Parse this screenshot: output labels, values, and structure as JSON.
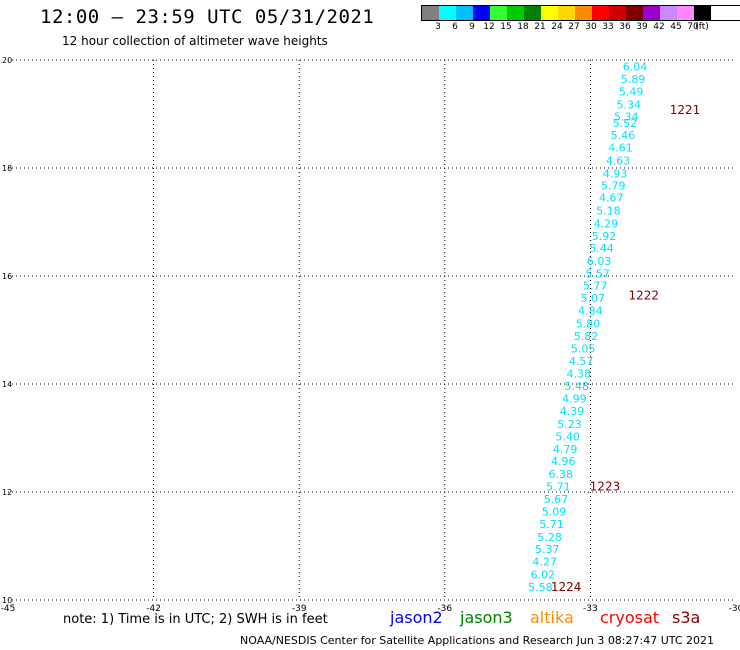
{
  "header": {
    "title": "12:00 – 23:59 UTC 05/31/2021",
    "subtitle": "12 hour collection of altimeter wave heights"
  },
  "color_scale": {
    "labels": [
      "3",
      "6",
      "9",
      "12",
      "15",
      "18",
      "21",
      "24",
      "27",
      "30",
      "33",
      "36",
      "39",
      "42",
      "45",
      "70",
      "(ft)"
    ],
    "colors": [
      "#808080",
      "#00ffff",
      "#00bfff",
      "#0000ff",
      "#33ff33",
      "#00cc00",
      "#008000",
      "#ffff00",
      "#ffd700",
      "#ff8c00",
      "#ff0000",
      "#cc0000",
      "#800000",
      "#9900cc",
      "#cc88ff",
      "#ff88ff",
      "#000000"
    ]
  },
  "footer": {
    "note": "note: 1) Time is in UTC; 2) SWH is in feet",
    "credit": "NOAA/NESDIS Center for Satellite Applications and Research   Jun  3 08:27:47 UTC 2021",
    "satellites": [
      {
        "name": "jason2",
        "color": "#0000ff"
      },
      {
        "name": "jason3",
        "color": "#008000"
      },
      {
        "name": "altika",
        "color": "#ff8c00"
      },
      {
        "name": "cryosat",
        "color": "#ff0000"
      },
      {
        "name": "s3a",
        "color": "#800000"
      }
    ]
  },
  "chart_data": {
    "type": "scatter",
    "xlim": [
      -45,
      -30
    ],
    "ylim": [
      10,
      20
    ],
    "x_ticks": [
      "-45",
      "-42",
      "-39",
      "-36",
      "-33",
      "-30"
    ],
    "y_ticks": [
      "10",
      "12",
      "14",
      "16",
      "18",
      "20"
    ],
    "grid": true,
    "point_color": "#00e0ff",
    "time_color": "#800000",
    "points": [
      {
        "x": -32.08,
        "y": 19.88,
        "label": "6.04"
      },
      {
        "x": -32.12,
        "y": 19.65,
        "label": "5.89"
      },
      {
        "x": -32.16,
        "y": 19.42,
        "label": "5.49"
      },
      {
        "x": -32.21,
        "y": 19.18,
        "label": "5.34"
      },
      {
        "x": -32.26,
        "y": 18.95,
        "label": "5.34"
      },
      {
        "x": -32.29,
        "y": 18.83,
        "label": "5.52"
      },
      {
        "x": -32.33,
        "y": 18.61,
        "label": "5.46"
      },
      {
        "x": -32.38,
        "y": 18.38,
        "label": "4.61"
      },
      {
        "x": -32.43,
        "y": 18.14,
        "label": "4.63"
      },
      {
        "x": -32.49,
        "y": 17.9,
        "label": "4.93"
      },
      {
        "x": -32.53,
        "y": 17.68,
        "label": "5.79"
      },
      {
        "x": -32.57,
        "y": 17.45,
        "label": "4.67"
      },
      {
        "x": -32.63,
        "y": 17.21,
        "label": "5.18"
      },
      {
        "x": -32.68,
        "y": 16.97,
        "label": "4.29"
      },
      {
        "x": -32.72,
        "y": 16.74,
        "label": "5.92"
      },
      {
        "x": -32.77,
        "y": 16.52,
        "label": "5.44"
      },
      {
        "x": -32.82,
        "y": 16.28,
        "label": "6.03"
      },
      {
        "x": -32.85,
        "y": 16.05,
        "label": "5.57"
      },
      {
        "x": -32.9,
        "y": 15.82,
        "label": "5.77"
      },
      {
        "x": -32.95,
        "y": 15.59,
        "label": "5.07"
      },
      {
        "x": -33.0,
        "y": 15.36,
        "label": "4.84"
      },
      {
        "x": -33.05,
        "y": 15.12,
        "label": "5.80"
      },
      {
        "x": -33.09,
        "y": 14.89,
        "label": "5.82"
      },
      {
        "x": -33.15,
        "y": 14.66,
        "label": "5.05"
      },
      {
        "x": -33.19,
        "y": 14.43,
        "label": "4.57"
      },
      {
        "x": -33.24,
        "y": 14.19,
        "label": "4.38"
      },
      {
        "x": -33.28,
        "y": 13.96,
        "label": "5.48"
      },
      {
        "x": -33.33,
        "y": 13.73,
        "label": "4.99"
      },
      {
        "x": -33.38,
        "y": 13.5,
        "label": "4.39"
      },
      {
        "x": -33.43,
        "y": 13.26,
        "label": "5.23"
      },
      {
        "x": -33.47,
        "y": 13.03,
        "label": "5.40"
      },
      {
        "x": -33.52,
        "y": 12.8,
        "label": "4.79"
      },
      {
        "x": -33.56,
        "y": 12.57,
        "label": "4.96"
      },
      {
        "x": -33.61,
        "y": 12.33,
        "label": "6.38"
      },
      {
        "x": -33.66,
        "y": 12.1,
        "label": "5.71"
      },
      {
        "x": -33.71,
        "y": 11.87,
        "label": "5.67"
      },
      {
        "x": -33.75,
        "y": 11.64,
        "label": "5.09"
      },
      {
        "x": -33.8,
        "y": 11.41,
        "label": "5.71"
      },
      {
        "x": -33.84,
        "y": 11.17,
        "label": "5.28"
      },
      {
        "x": -33.89,
        "y": 10.94,
        "label": "5.37"
      },
      {
        "x": -33.94,
        "y": 10.71,
        "label": "4.27"
      },
      {
        "x": -33.98,
        "y": 10.47,
        "label": "6.02"
      },
      {
        "x": -34.03,
        "y": 10.24,
        "label": "5.58"
      }
    ],
    "time_labels": [
      {
        "x": -31.05,
        "y": 19.07,
        "label": "1221"
      },
      {
        "x": -31.9,
        "y": 15.64,
        "label": "1222"
      },
      {
        "x": -32.7,
        "y": 12.1,
        "label": "1223"
      },
      {
        "x": -33.5,
        "y": 10.24,
        "label": "1224"
      }
    ]
  }
}
